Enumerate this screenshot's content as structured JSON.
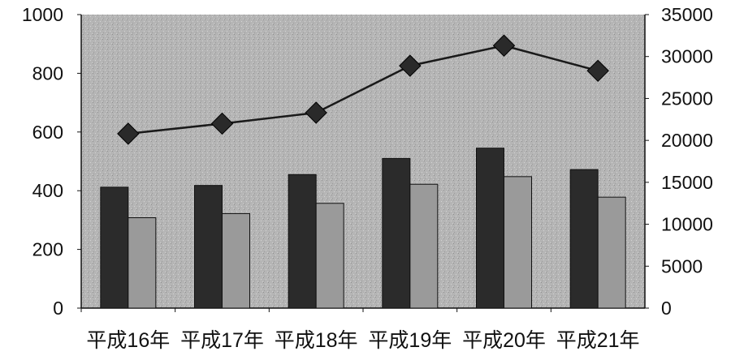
{
  "chart_data": {
    "type": "bar",
    "categories": [
      "平成16年",
      "平成17年",
      "平成18年",
      "平成19年",
      "平成20年",
      "平成21年"
    ],
    "series": [
      {
        "type": "bar",
        "axis": "left",
        "color": "#2b2b2b",
        "values": [
          412,
          418,
          455,
          510,
          545,
          472
        ]
      },
      {
        "type": "bar",
        "axis": "left",
        "color": "#9a9a9a",
        "values": [
          308,
          322,
          357,
          422,
          448,
          378
        ]
      },
      {
        "type": "line",
        "axis": "right",
        "marker": "diamond",
        "color": "#1a1a1a",
        "values": [
          20800,
          22000,
          23300,
          28900,
          31300,
          28300
        ]
      }
    ],
    "left_axis": {
      "min": 0,
      "max": 1000,
      "ticks": [
        "0",
        "200",
        "400",
        "600",
        "800",
        "1000"
      ]
    },
    "right_axis": {
      "min": 0,
      "max": 35000,
      "ticks": [
        "0",
        "5000",
        "10000",
        "15000",
        "20000",
        "25000",
        "30000",
        "35000"
      ]
    },
    "grid": false,
    "legend": "none",
    "plot_background": "#b8b8b8"
  }
}
